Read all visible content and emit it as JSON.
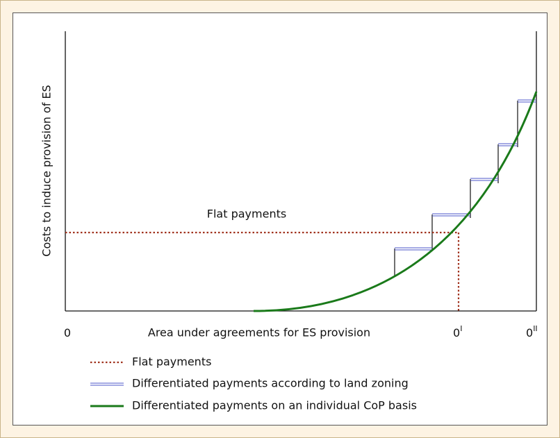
{
  "axes": {
    "y_label": "Costs to induce provision of ES",
    "x_label": "Area under agreements for ES provision",
    "x_ticks": [
      {
        "base": "0"
      },
      {
        "base": "0",
        "sup": "I"
      },
      {
        "base": "0",
        "sup": "II"
      }
    ]
  },
  "annotation": "Flat payments",
  "legend": [
    "Flat payments",
    "Differentiated payments according to land zoning",
    "Differentiated payments on an individual CoP basis"
  ]
}
